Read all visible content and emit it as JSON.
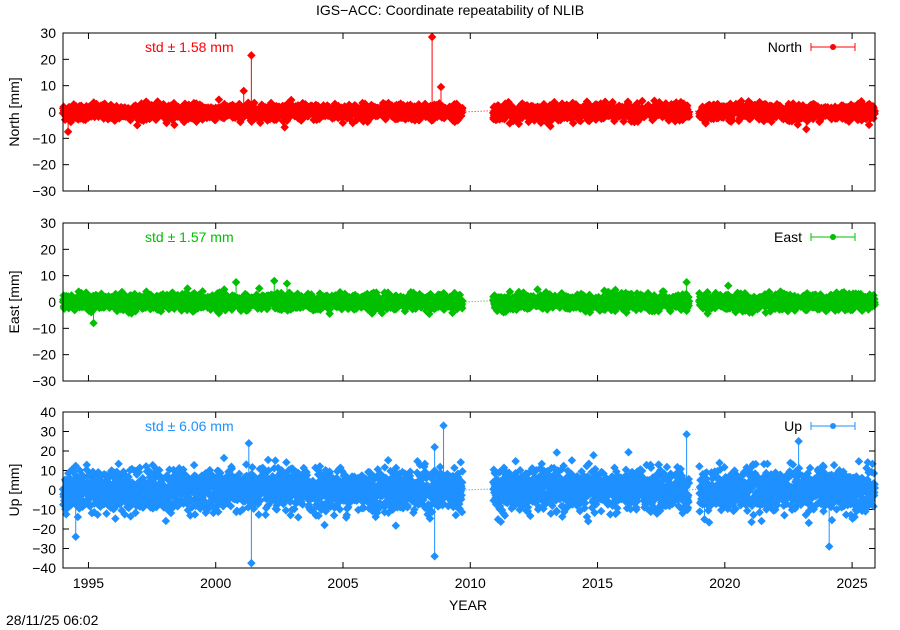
{
  "title": "IGS−ACC: Coordinate repeatability of NLIB",
  "timestamp": "28/11/25 06:02",
  "chart_data": [
    {
      "type": "scatter",
      "panel": "north",
      "ylabel": "North [mm]",
      "ylim": [
        -30,
        30
      ],
      "yticks": [
        30,
        20,
        10,
        0,
        -10,
        -20,
        -30
      ],
      "ytick_labels": [
        "30",
        "20",
        "10",
        "0",
        "−10",
        "−20",
        "−30"
      ],
      "xlim": [
        1994.0,
        2025.9
      ],
      "color": "#ff0000",
      "legend": "North",
      "legend_position": "top-right",
      "std_label": "std ± 1.58 mm",
      "segments": [
        [
          1994.0,
          1999.9
        ],
        [
          1999.9,
          2004.5
        ],
        [
          2004.5,
          2009.7
        ],
        [
          2010.9,
          2014.6
        ],
        [
          2014.6,
          2018.6
        ],
        [
          2019.0,
          2022.4
        ],
        [
          2022.4,
          2025.9
        ]
      ],
      "spread": 1.6,
      "outliers": [
        [
          2001.4,
          21.5
        ],
        [
          2008.5,
          28.5
        ],
        [
          2008.85,
          9.5
        ],
        [
          2001.1,
          8.0
        ],
        [
          2023.2,
          -6.5
        ],
        [
          1994.2,
          -7.5
        ]
      ]
    },
    {
      "type": "scatter",
      "panel": "east",
      "ylabel": "East [mm]",
      "ylim": [
        -30,
        30
      ],
      "yticks": [
        30,
        20,
        10,
        0,
        -10,
        -20,
        -30
      ],
      "ytick_labels": [
        "30",
        "20",
        "10",
        "0",
        "−10",
        "−20",
        "−30"
      ],
      "xlim": [
        1994.0,
        2025.9
      ],
      "color": "#00c000",
      "legend": "East",
      "legend_position": "top-right",
      "std_label": "std ± 1.57 mm",
      "segments": [
        [
          1994.0,
          1999.9
        ],
        [
          1999.9,
          2004.5
        ],
        [
          2004.5,
          2009.7
        ],
        [
          2010.9,
          2014.6
        ],
        [
          2014.6,
          2018.6
        ],
        [
          2019.0,
          2022.4
        ],
        [
          2022.4,
          2025.9
        ]
      ],
      "spread": 1.6,
      "outliers": [
        [
          2000.8,
          7.5
        ],
        [
          2002.3,
          8.0
        ],
        [
          2002.8,
          7.0
        ],
        [
          2018.5,
          7.5
        ],
        [
          1995.2,
          -8.0
        ]
      ]
    },
    {
      "type": "scatter",
      "panel": "up",
      "ylabel": "Up [mm]",
      "ylim": [
        -40,
        40
      ],
      "yticks": [
        40,
        30,
        20,
        10,
        0,
        -10,
        -20,
        -30,
        -40
      ],
      "ytick_labels": [
        "40",
        "30",
        "20",
        "10",
        "0",
        "−10",
        "−20",
        "−30",
        "−40"
      ],
      "xlim": [
        1994.0,
        2025.9
      ],
      "xticks": [
        1995,
        2000,
        2005,
        2010,
        2015,
        2020,
        2025
      ],
      "xtick_labels": [
        "1995",
        "2000",
        "2005",
        "2010",
        "2015",
        "2020",
        "2025"
      ],
      "xlabel": "YEAR",
      "color": "#1e90ff",
      "legend": "Up",
      "legend_position": "top-right",
      "std_label": "std ± 6.06 mm",
      "segments": [
        [
          1994.0,
          1999.9
        ],
        [
          1999.9,
          2004.5
        ],
        [
          2004.5,
          2009.7
        ],
        [
          2010.9,
          2014.6
        ],
        [
          2014.6,
          2018.6
        ],
        [
          2019.0,
          2022.4
        ],
        [
          2022.4,
          2025.9
        ]
      ],
      "spread": 6.0,
      "outliers": [
        [
          2001.4,
          -37.5
        ],
        [
          2008.6,
          -34.0
        ],
        [
          2008.95,
          33.0
        ],
        [
          2008.6,
          22.0
        ],
        [
          2018.5,
          28.5
        ],
        [
          2001.3,
          24.0
        ],
        [
          2024.1,
          -29.0
        ],
        [
          2022.9,
          25.0
        ],
        [
          1994.5,
          -24.0
        ],
        [
          2019.2,
          -15.0
        ]
      ]
    }
  ]
}
